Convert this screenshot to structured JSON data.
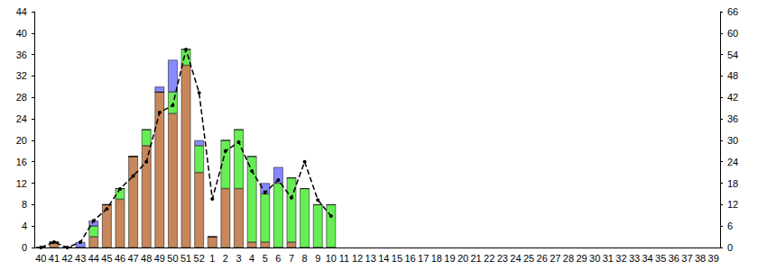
{
  "chart_data": {
    "type": "bar",
    "stacked": true,
    "grid": false,
    "categories": [
      "40",
      "41",
      "42",
      "43",
      "44",
      "45",
      "46",
      "47",
      "48",
      "49",
      "50",
      "51",
      "52",
      "1",
      "2",
      "3",
      "4",
      "5",
      "6",
      "7",
      "8",
      "9",
      "10",
      "11",
      "12",
      "13",
      "14",
      "15",
      "16",
      "17",
      "18",
      "19",
      "20",
      "21",
      "22",
      "23",
      "24",
      "25",
      "26",
      "27",
      "28",
      "29",
      "30",
      "31",
      "32",
      "33",
      "34",
      "35",
      "36",
      "37",
      "38",
      "39"
    ],
    "ylim": [
      0,
      44
    ],
    "yticks": [
      0,
      4,
      8,
      12,
      16,
      20,
      24,
      28,
      32,
      36,
      40,
      44
    ],
    "y2lim": [
      0,
      66
    ],
    "y2ticks": [
      0,
      6,
      12,
      18,
      24,
      30,
      36,
      42,
      48,
      54,
      60,
      66
    ],
    "series": [
      {
        "type": "bar",
        "color": "#c8875a",
        "values": [
          0,
          1,
          0,
          0,
          2,
          8,
          9,
          17,
          19,
          29,
          25,
          34,
          14,
          2,
          11,
          11,
          1,
          1,
          0,
          1,
          0,
          0,
          0,
          null,
          null,
          null,
          null,
          null,
          null,
          null,
          null,
          null,
          null,
          null,
          null,
          null,
          null,
          null,
          null,
          null,
          null,
          null,
          null,
          null,
          null,
          null,
          null,
          null,
          null,
          null,
          null,
          null
        ]
      },
      {
        "type": "bar",
        "color": "#66ee55",
        "values": [
          0,
          0,
          0,
          0,
          2,
          0,
          2,
          0,
          3,
          0,
          4,
          3,
          5,
          0,
          9,
          11,
          16,
          9,
          12,
          12,
          11,
          8,
          8,
          null,
          null,
          null,
          null,
          null,
          null,
          null,
          null,
          null,
          null,
          null,
          null,
          null,
          null,
          null,
          null,
          null,
          null,
          null,
          null,
          null,
          null,
          null,
          null,
          null,
          null,
          null,
          null,
          null
        ]
      },
      {
        "type": "bar",
        "color": "#8888ff",
        "values": [
          0,
          0,
          0,
          1,
          1,
          0,
          0,
          0,
          0,
          1,
          6,
          0,
          1,
          0,
          0,
          0,
          0,
          2,
          3,
          0,
          0,
          0,
          0,
          null,
          null,
          null,
          null,
          null,
          null,
          null,
          null,
          null,
          null,
          null,
          null,
          null,
          null,
          null,
          null,
          null,
          null,
          null,
          null,
          null,
          null,
          null,
          null,
          null,
          null,
          null,
          null,
          null
        ]
      },
      {
        "type": "line",
        "axis": "y2",
        "color": "#000000",
        "marker": "circle",
        "line_style": "dashed",
        "values": [
          0,
          1.5,
          0,
          1.5,
          7.5,
          10.8,
          16.4,
          20,
          24,
          37.8,
          39.8,
          55.4,
          43.3,
          13.6,
          27,
          29.5,
          21.4,
          15.4,
          18.9,
          13.9,
          24,
          13.3,
          8.8,
          null,
          null,
          null,
          null,
          null,
          null,
          null,
          null,
          null,
          null,
          null,
          null,
          null,
          null,
          null,
          null,
          null,
          null,
          null,
          null,
          null,
          null,
          null,
          null,
          null,
          null,
          null,
          null,
          null
        ]
      }
    ]
  }
}
